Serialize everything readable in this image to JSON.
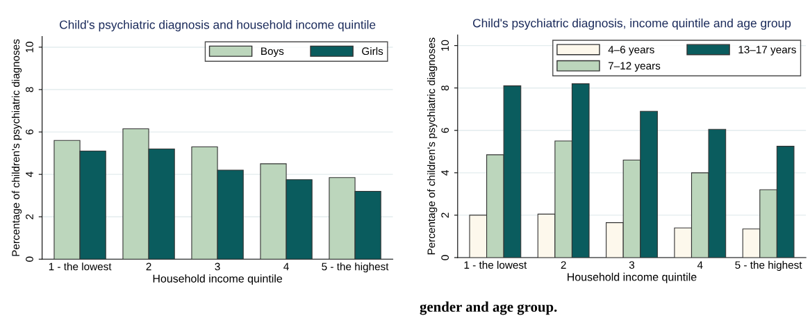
{
  "chart_data": [
    {
      "type": "bar",
      "title": "Child's psychiatric diagnosis and household income quintile",
      "xlabel": "Household income quintile",
      "ylabel": "Percentage of children's psychiatric diagnoses",
      "categories": [
        "1 - the lowest",
        "2",
        "3",
        "4",
        "5 - the highest"
      ],
      "series": [
        {
          "name": "Boys",
          "color": "#bcd6bc",
          "values": [
            5.6,
            6.15,
            5.3,
            4.5,
            3.85
          ]
        },
        {
          "name": "Girls",
          "color": "#0a5c5e",
          "values": [
            5.1,
            5.2,
            4.2,
            3.75,
            3.2
          ]
        }
      ],
      "ylim": [
        0,
        10.5
      ],
      "yticks": [
        0,
        2,
        4,
        6,
        8,
        10
      ],
      "grid": "y",
      "legend": "top right"
    },
    {
      "type": "bar",
      "title": "Child's psychiatric diagnosis, income quintile and age group",
      "xlabel": "Household income quintile",
      "ylabel": "Percentage of children's psychiatric diagnoses",
      "categories": [
        "1 - the lowest",
        "2",
        "3",
        "4",
        "5 - the highest"
      ],
      "series": [
        {
          "name": "4–6 years",
          "color": "#fdf8ec",
          "values": [
            2.0,
            2.05,
            1.65,
            1.4,
            1.35
          ]
        },
        {
          "name": "7–12 years",
          "color": "#bcd6bc",
          "values": [
            4.85,
            5.5,
            4.6,
            4.0,
            3.2
          ]
        },
        {
          "name": "13–17 years",
          "color": "#0a5c5e",
          "values": [
            8.1,
            8.2,
            6.9,
            6.05,
            5.25
          ]
        }
      ],
      "ylim": [
        0,
        10.5
      ],
      "yticks": [
        0,
        2,
        4,
        6,
        8,
        10
      ],
      "grid": "y",
      "legend": "top right",
      "annotations": [
        "gender and age group."
      ]
    }
  ]
}
